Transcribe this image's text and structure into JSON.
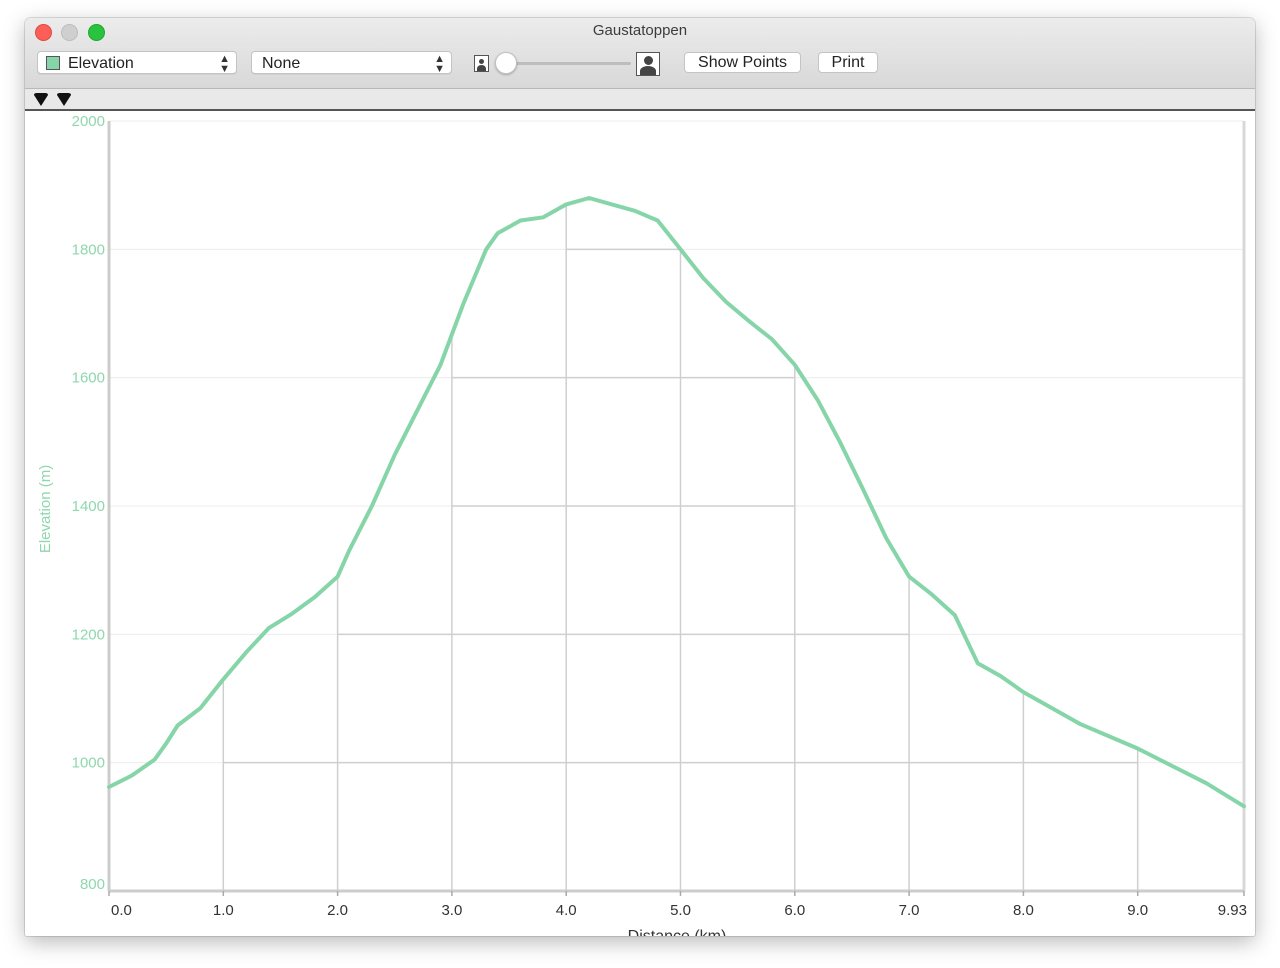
{
  "window": {
    "title": "Gaustatoppen"
  },
  "toolbar": {
    "primary_select": {
      "value": "Elevation",
      "swatch_color": "#86d5a9"
    },
    "secondary_select": {
      "value": "None"
    },
    "show_points_label": "Show Points",
    "print_label": "Print",
    "slider_value": 0
  },
  "chart_data": {
    "type": "line",
    "xlabel": "Distance (km)",
    "ylabel": "Elevation (m)",
    "xlim": [
      0,
      9.93
    ],
    "ylim": [
      800,
      2000
    ],
    "x_ticks": [
      "0.0",
      "1.0",
      "2.0",
      "3.0",
      "4.0",
      "5.0",
      "6.0",
      "7.0",
      "8.0",
      "9.0",
      "9.93"
    ],
    "y_ticks": [
      "800",
      "1000",
      "1200",
      "1400",
      "1600",
      "1800",
      "2000"
    ],
    "line_color": "#86d5a9",
    "grid": true,
    "series": [
      {
        "name": "Elevation",
        "x": [
          0,
          0.2,
          0.4,
          0.5,
          0.6,
          0.8,
          1.0,
          1.2,
          1.4,
          1.6,
          1.8,
          2.0,
          2.1,
          2.3,
          2.5,
          2.7,
          2.9,
          3.1,
          3.3,
          3.4,
          3.6,
          3.8,
          4.0,
          4.2,
          4.4,
          4.6,
          4.8,
          5.0,
          5.2,
          5.4,
          5.6,
          5.8,
          6.0,
          6.2,
          6.4,
          6.6,
          6.8,
          7.0,
          7.2,
          7.4,
          7.6,
          7.8,
          8.0,
          8.5,
          9.0,
          9.3,
          9.6,
          9.93
        ],
        "y": [
          962,
          980,
          1005,
          1030,
          1058,
          1085,
          1130,
          1172,
          1210,
          1232,
          1258,
          1290,
          1330,
          1400,
          1480,
          1550,
          1620,
          1715,
          1800,
          1825,
          1845,
          1850,
          1870,
          1880,
          1870,
          1860,
          1845,
          1800,
          1755,
          1718,
          1688,
          1660,
          1620,
          1565,
          1498,
          1425,
          1350,
          1290,
          1262,
          1230,
          1155,
          1135,
          1110,
          1060,
          1022,
          995,
          968,
          932
        ]
      }
    ]
  }
}
